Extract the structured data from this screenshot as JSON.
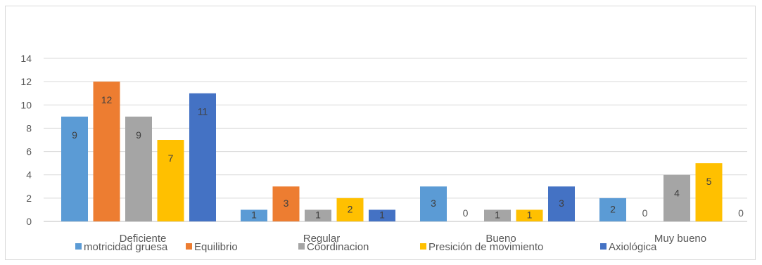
{
  "chart_data": {
    "type": "bar",
    "categories": [
      "Deficiente",
      "Regular",
      "Bueno",
      "Muy bueno"
    ],
    "series": [
      {
        "name": "motricidad gruesa",
        "color": "#5b9bd5",
        "values": [
          9,
          1,
          3,
          2
        ]
      },
      {
        "name": "Equilibrio",
        "color": "#ed7d31",
        "values": [
          12,
          3,
          0,
          0
        ]
      },
      {
        "name": "Coordinacion",
        "color": "#a5a5a5",
        "values": [
          9,
          1,
          1,
          4
        ]
      },
      {
        "name": "Presición de movimiento",
        "color": "#ffc000",
        "values": [
          7,
          2,
          1,
          5
        ]
      },
      {
        "name": "Axiológica",
        "color": "#4472c4",
        "values": [
          11,
          1,
          3,
          0
        ]
      }
    ],
    "yticks": [
      0,
      2,
      4,
      6,
      8,
      10,
      12,
      14
    ],
    "ylim": [
      0,
      14
    ],
    "grid": true,
    "legend_position": "bottom",
    "data_labels": true
  }
}
